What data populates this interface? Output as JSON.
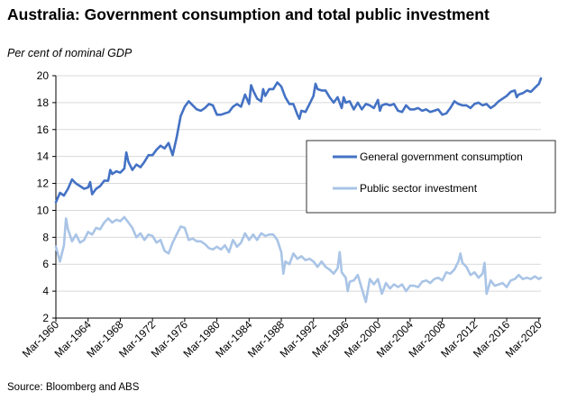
{
  "chart_data": {
    "type": "line",
    "title": "Australia: Government consumption and total public investment",
    "ylabel": "Per cent of nominal GDP",
    "source": "Source: Bloomberg and ABS",
    "ylim": [
      2,
      20
    ],
    "yticks": [
      2,
      4,
      6,
      8,
      10,
      12,
      14,
      16,
      18,
      20
    ],
    "xlim": [
      1960.0,
      2020.25
    ],
    "xticks": [
      1960,
      1964,
      1968,
      1972,
      1976,
      1980,
      1984,
      1988,
      1992,
      1996,
      2000,
      2004,
      2008,
      2012,
      2016,
      2020
    ],
    "xtick_labels": [
      "Mar-1960",
      "Mar-1964",
      "Mar-1968",
      "Mar-1972",
      "Mar-1976",
      "Mar-1980",
      "Mar-1984",
      "Mar-1988",
      "Mar-1992",
      "Mar-1996",
      "Mar-2000",
      "Mar-2004",
      "Mar-2008",
      "Mar-2012",
      "Mar-2016",
      "Mar-2020"
    ],
    "grid": "horizontal",
    "legend_position": "middle-right",
    "series": [
      {
        "name": "General government consumption",
        "color": "#4472C4",
        "points": [
          [
            1960.0,
            10.6
          ],
          [
            1960.5,
            11.3
          ],
          [
            1961.0,
            11.1
          ],
          [
            1961.5,
            11.6
          ],
          [
            1962.0,
            12.3
          ],
          [
            1962.5,
            12.0
          ],
          [
            1963.0,
            11.8
          ],
          [
            1963.5,
            11.6
          ],
          [
            1964.0,
            11.7
          ],
          [
            1964.25,
            12.1
          ],
          [
            1964.5,
            11.2
          ],
          [
            1965.0,
            11.6
          ],
          [
            1965.5,
            11.8
          ],
          [
            1966.0,
            12.2
          ],
          [
            1966.5,
            12.2
          ],
          [
            1966.75,
            13.0
          ],
          [
            1967.0,
            12.7
          ],
          [
            1967.5,
            12.9
          ],
          [
            1968.0,
            12.8
          ],
          [
            1968.5,
            13.1
          ],
          [
            1968.75,
            14.3
          ],
          [
            1969.0,
            13.6
          ],
          [
            1969.5,
            13.0
          ],
          [
            1970.0,
            13.4
          ],
          [
            1970.5,
            13.2
          ],
          [
            1971.0,
            13.6
          ],
          [
            1971.5,
            14.1
          ],
          [
            1972.0,
            14.1
          ],
          [
            1972.5,
            14.5
          ],
          [
            1973.0,
            14.8
          ],
          [
            1973.5,
            14.6
          ],
          [
            1974.0,
            15.0
          ],
          [
            1974.5,
            14.1
          ],
          [
            1975.0,
            15.4
          ],
          [
            1975.5,
            17.0
          ],
          [
            1976.0,
            17.7
          ],
          [
            1976.5,
            18.1
          ],
          [
            1977.0,
            17.8
          ],
          [
            1977.5,
            17.5
          ],
          [
            1978.0,
            17.4
          ],
          [
            1978.5,
            17.6
          ],
          [
            1979.0,
            17.9
          ],
          [
            1979.5,
            17.8
          ],
          [
            1980.0,
            17.1
          ],
          [
            1980.5,
            17.1
          ],
          [
            1981.0,
            17.2
          ],
          [
            1981.5,
            17.3
          ],
          [
            1982.0,
            17.7
          ],
          [
            1982.5,
            17.9
          ],
          [
            1983.0,
            17.7
          ],
          [
            1983.5,
            18.6
          ],
          [
            1984.0,
            17.9
          ],
          [
            1984.25,
            19.3
          ],
          [
            1984.5,
            18.9
          ],
          [
            1985.0,
            18.3
          ],
          [
            1985.5,
            18.1
          ],
          [
            1985.75,
            19.0
          ],
          [
            1986.0,
            18.5
          ],
          [
            1986.5,
            19.0
          ],
          [
            1987.0,
            19.0
          ],
          [
            1987.5,
            19.5
          ],
          [
            1988.0,
            19.2
          ],
          [
            1988.5,
            18.4
          ],
          [
            1989.0,
            17.9
          ],
          [
            1989.5,
            17.9
          ],
          [
            1990.0,
            17.1
          ],
          [
            1990.25,
            16.8
          ],
          [
            1990.5,
            17.4
          ],
          [
            1991.0,
            17.3
          ],
          [
            1991.5,
            17.9
          ],
          [
            1992.0,
            18.5
          ],
          [
            1992.25,
            19.4
          ],
          [
            1992.5,
            19.0
          ],
          [
            1993.0,
            18.9
          ],
          [
            1993.5,
            18.9
          ],
          [
            1994.0,
            18.4
          ],
          [
            1994.5,
            18.0
          ],
          [
            1995.0,
            18.4
          ],
          [
            1995.5,
            17.6
          ],
          [
            1995.75,
            18.4
          ],
          [
            1996.0,
            18.0
          ],
          [
            1996.5,
            18.1
          ],
          [
            1997.0,
            17.5
          ],
          [
            1997.5,
            18.0
          ],
          [
            1998.0,
            17.5
          ],
          [
            1998.5,
            17.9
          ],
          [
            1999.0,
            17.8
          ],
          [
            1999.5,
            17.6
          ],
          [
            2000.0,
            18.2
          ],
          [
            2000.25,
            17.4
          ],
          [
            2000.5,
            17.8
          ],
          [
            2001.0,
            17.9
          ],
          [
            2001.5,
            17.8
          ],
          [
            2002.0,
            17.9
          ],
          [
            2002.5,
            17.4
          ],
          [
            2003.0,
            17.3
          ],
          [
            2003.5,
            17.8
          ],
          [
            2004.0,
            17.5
          ],
          [
            2004.5,
            17.5
          ],
          [
            2005.0,
            17.6
          ],
          [
            2005.5,
            17.4
          ],
          [
            2006.0,
            17.5
          ],
          [
            2006.5,
            17.3
          ],
          [
            2007.0,
            17.4
          ],
          [
            2007.5,
            17.5
          ],
          [
            2008.0,
            17.1
          ],
          [
            2008.5,
            17.2
          ],
          [
            2009.0,
            17.6
          ],
          [
            2009.5,
            18.1
          ],
          [
            2010.0,
            17.9
          ],
          [
            2010.5,
            17.8
          ],
          [
            2011.0,
            17.8
          ],
          [
            2011.5,
            17.6
          ],
          [
            2012.0,
            17.9
          ],
          [
            2012.5,
            18.0
          ],
          [
            2013.0,
            17.8
          ],
          [
            2013.5,
            17.9
          ],
          [
            2014.0,
            17.6
          ],
          [
            2014.5,
            17.8
          ],
          [
            2015.0,
            18.1
          ],
          [
            2015.5,
            18.3
          ],
          [
            2016.0,
            18.5
          ],
          [
            2016.5,
            18.8
          ],
          [
            2017.0,
            18.9
          ],
          [
            2017.25,
            18.4
          ],
          [
            2017.5,
            18.6
          ],
          [
            2018.0,
            18.7
          ],
          [
            2018.5,
            18.9
          ],
          [
            2019.0,
            18.8
          ],
          [
            2019.5,
            19.1
          ],
          [
            2020.0,
            19.4
          ],
          [
            2020.25,
            19.8
          ]
        ]
      },
      {
        "name": "Public sector investment",
        "color": "#A9C4E6",
        "points": [
          [
            1960.0,
            7.3
          ],
          [
            1960.5,
            6.2
          ],
          [
            1961.0,
            7.4
          ],
          [
            1961.25,
            9.4
          ],
          [
            1961.5,
            8.6
          ],
          [
            1962.0,
            7.7
          ],
          [
            1962.5,
            8.2
          ],
          [
            1963.0,
            7.6
          ],
          [
            1963.5,
            7.8
          ],
          [
            1964.0,
            8.4
          ],
          [
            1964.5,
            8.2
          ],
          [
            1965.0,
            8.7
          ],
          [
            1965.5,
            8.6
          ],
          [
            1966.0,
            9.1
          ],
          [
            1966.5,
            9.4
          ],
          [
            1967.0,
            9.1
          ],
          [
            1967.5,
            9.3
          ],
          [
            1968.0,
            9.2
          ],
          [
            1968.5,
            9.5
          ],
          [
            1969.0,
            9.1
          ],
          [
            1969.5,
            8.7
          ],
          [
            1970.0,
            8.0
          ],
          [
            1970.5,
            8.3
          ],
          [
            1971.0,
            7.8
          ],
          [
            1971.5,
            8.2
          ],
          [
            1972.0,
            8.1
          ],
          [
            1972.5,
            7.6
          ],
          [
            1973.0,
            7.8
          ],
          [
            1973.5,
            7.0
          ],
          [
            1974.0,
            6.8
          ],
          [
            1974.5,
            7.6
          ],
          [
            1975.0,
            8.2
          ],
          [
            1975.5,
            8.8
          ],
          [
            1976.0,
            8.7
          ],
          [
            1976.5,
            7.8
          ],
          [
            1977.0,
            7.9
          ],
          [
            1977.5,
            7.7
          ],
          [
            1978.0,
            7.7
          ],
          [
            1978.5,
            7.5
          ],
          [
            1979.0,
            7.2
          ],
          [
            1979.5,
            7.1
          ],
          [
            1980.0,
            7.3
          ],
          [
            1980.5,
            7.1
          ],
          [
            1981.0,
            7.4
          ],
          [
            1981.5,
            6.9
          ],
          [
            1982.0,
            7.8
          ],
          [
            1982.5,
            7.3
          ],
          [
            1983.0,
            7.6
          ],
          [
            1983.5,
            8.3
          ],
          [
            1984.0,
            7.8
          ],
          [
            1984.5,
            8.2
          ],
          [
            1985.0,
            7.8
          ],
          [
            1985.5,
            8.3
          ],
          [
            1986.0,
            8.1
          ],
          [
            1986.5,
            8.2
          ],
          [
            1987.0,
            8.2
          ],
          [
            1987.5,
            7.8
          ],
          [
            1988.0,
            6.9
          ],
          [
            1988.25,
            5.3
          ],
          [
            1988.5,
            6.2
          ],
          [
            1989.0,
            6.0
          ],
          [
            1989.5,
            6.8
          ],
          [
            1990.0,
            6.4
          ],
          [
            1990.5,
            6.6
          ],
          [
            1991.0,
            6.3
          ],
          [
            1991.5,
            6.4
          ],
          [
            1992.0,
            6.2
          ],
          [
            1992.5,
            5.8
          ],
          [
            1993.0,
            6.2
          ],
          [
            1993.5,
            5.8
          ],
          [
            1994.0,
            5.6
          ],
          [
            1994.5,
            5.3
          ],
          [
            1995.0,
            5.7
          ],
          [
            1995.25,
            6.9
          ],
          [
            1995.5,
            5.4
          ],
          [
            1996.0,
            5.0
          ],
          [
            1996.25,
            4.0
          ],
          [
            1996.5,
            4.7
          ],
          [
            1997.0,
            4.8
          ],
          [
            1997.5,
            5.2
          ],
          [
            1998.0,
            4.2
          ],
          [
            1998.5,
            3.2
          ],
          [
            1999.0,
            4.9
          ],
          [
            1999.5,
            4.5
          ],
          [
            2000.0,
            4.9
          ],
          [
            2000.5,
            3.8
          ],
          [
            2001.0,
            4.6
          ],
          [
            2001.5,
            4.2
          ],
          [
            2002.0,
            4.5
          ],
          [
            2002.5,
            4.3
          ],
          [
            2003.0,
            4.5
          ],
          [
            2003.5,
            4.0
          ],
          [
            2004.0,
            4.4
          ],
          [
            2004.5,
            4.4
          ],
          [
            2005.0,
            4.3
          ],
          [
            2005.5,
            4.7
          ],
          [
            2006.0,
            4.8
          ],
          [
            2006.5,
            4.6
          ],
          [
            2007.0,
            4.9
          ],
          [
            2007.5,
            5.0
          ],
          [
            2008.0,
            4.8
          ],
          [
            2008.5,
            5.4
          ],
          [
            2009.0,
            5.3
          ],
          [
            2009.5,
            5.6
          ],
          [
            2010.0,
            6.2
          ],
          [
            2010.25,
            6.8
          ],
          [
            2010.5,
            6.1
          ],
          [
            2011.0,
            5.8
          ],
          [
            2011.5,
            5.2
          ],
          [
            2012.0,
            5.4
          ],
          [
            2012.5,
            5.0
          ],
          [
            2013.0,
            5.3
          ],
          [
            2013.25,
            6.1
          ],
          [
            2013.5,
            3.8
          ],
          [
            2014.0,
            4.8
          ],
          [
            2014.5,
            4.4
          ],
          [
            2015.0,
            4.5
          ],
          [
            2015.5,
            4.6
          ],
          [
            2016.0,
            4.3
          ],
          [
            2016.5,
            4.8
          ],
          [
            2017.0,
            4.9
          ],
          [
            2017.5,
            5.2
          ],
          [
            2018.0,
            4.9
          ],
          [
            2018.5,
            5.0
          ],
          [
            2019.0,
            4.9
          ],
          [
            2019.5,
            5.1
          ],
          [
            2020.0,
            4.9
          ],
          [
            2020.25,
            5.0
          ]
        ]
      }
    ]
  }
}
